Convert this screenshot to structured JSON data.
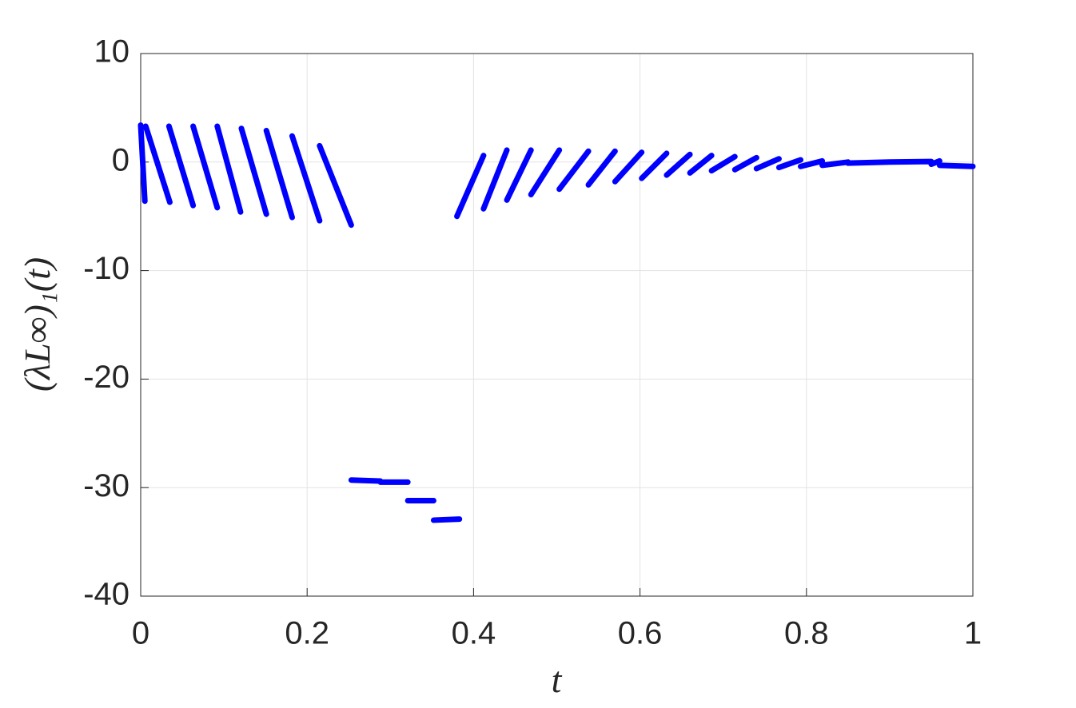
{
  "chart_data": {
    "type": "line",
    "xlabel": "t",
    "ylabel": "(λL∞)₁(t)",
    "x": [
      0.0,
      0.005,
      null,
      0.006,
      0.035,
      null,
      0.034,
      0.063,
      null,
      0.063,
      0.092,
      null,
      0.092,
      0.12,
      null,
      0.121,
      0.151,
      null,
      0.151,
      0.182,
      null,
      0.182,
      0.215,
      null,
      0.215,
      0.253,
      null,
      0.253,
      0.288,
      null,
      0.288,
      0.321,
      null,
      0.321,
      0.352,
      null,
      0.352,
      0.383,
      null,
      0.38,
      0.412,
      null,
      0.412,
      0.44,
      null,
      0.44,
      0.469,
      null,
      0.469,
      0.503,
      null,
      0.503,
      0.538,
      null,
      0.538,
      0.57,
      null,
      0.57,
      0.602,
      null,
      0.602,
      0.632,
      null,
      0.632,
      0.66,
      null,
      0.66,
      0.686,
      null,
      0.686,
      0.714,
      null,
      0.714,
      0.74,
      null,
      0.74,
      0.767,
      null,
      0.767,
      0.793,
      null,
      0.793,
      0.819,
      null,
      0.819,
      0.85,
      null,
      0.85,
      0.9,
      0.95,
      null,
      0.95,
      0.96,
      null,
      0.96,
      1.0
    ],
    "series": [
      {
        "color": "#0000ff",
        "values": [
          3.4,
          -3.6,
          null,
          3.3,
          -3.7,
          null,
          3.3,
          -4.0,
          null,
          3.3,
          -4.2,
          null,
          3.3,
          -4.6,
          null,
          3.1,
          -4.8,
          null,
          2.9,
          -5.1,
          null,
          2.4,
          -5.4,
          null,
          1.5,
          -5.8,
          null,
          -29.3,
          -29.4,
          null,
          -29.5,
          -29.5,
          null,
          -31.2,
          -31.2,
          null,
          -33.0,
          -32.9,
          null,
          -5.0,
          0.6,
          null,
          -4.3,
          1.1,
          null,
          -3.5,
          1.1,
          null,
          -3.0,
          1.1,
          null,
          -2.5,
          1.0,
          null,
          -2.1,
          1.0,
          null,
          -1.8,
          0.9,
          null,
          -1.5,
          0.8,
          null,
          -1.2,
          0.7,
          null,
          -1.0,
          0.6,
          null,
          -0.8,
          0.5,
          null,
          -0.7,
          0.4,
          null,
          -0.6,
          0.3,
          null,
          -0.5,
          0.2,
          null,
          -0.4,
          0.1,
          null,
          -0.3,
          0.0,
          null,
          -0.1,
          0.0,
          0.05,
          null,
          -0.2,
          0.1,
          null,
          -0.3,
          -0.4
        ]
      }
    ],
    "xlim": [
      0,
      1
    ],
    "xticks": [
      0,
      0.2,
      0.4,
      0.6,
      0.8,
      1
    ],
    "ylim": [
      -40,
      10
    ],
    "yticks": [
      -40,
      -30,
      -20,
      -10,
      0,
      10
    ],
    "grid": true
  }
}
